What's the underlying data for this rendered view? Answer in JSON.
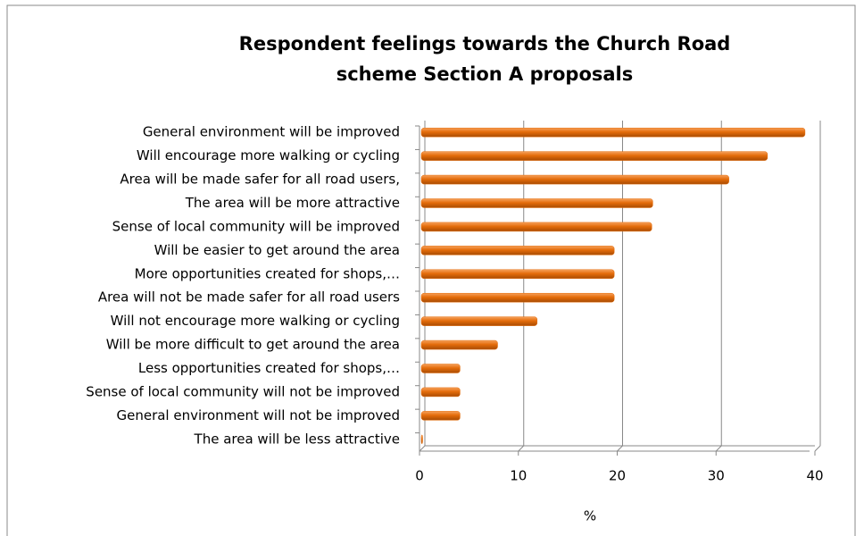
{
  "chart_data": {
    "type": "bar",
    "orientation": "horizontal",
    "title": [
      "Respondent feelings towards the Church Road",
      "scheme Section A proposals"
    ],
    "xlabel": "%",
    "categories": [
      "General environment will be improved",
      "Will encourage more walking or cycling",
      "Area will be made safer for all road users,",
      "The area will be more attractive",
      "Sense of local community will be improved",
      "Will be easier to get around the area",
      "More opportunities created for shops,…",
      "Area will not be made safer for all road users",
      "Will not encourage more walking or cycling",
      "Will be more difficult to get around the area",
      "Less opportunities created for shops,…",
      "Sense of local community will not be improved",
      "General environment will not be improved",
      "The area will be less attractive"
    ],
    "values": [
      39,
      35.2,
      31.3,
      23.6,
      23.5,
      19.7,
      19.7,
      19.7,
      11.9,
      7.9,
      4.1,
      4.1,
      4.1,
      0.3
    ],
    "color": "#e46c0a",
    "xlim": [
      0,
      40
    ],
    "xticks": [
      0,
      10,
      20,
      30,
      40
    ],
    "grid": true
  }
}
